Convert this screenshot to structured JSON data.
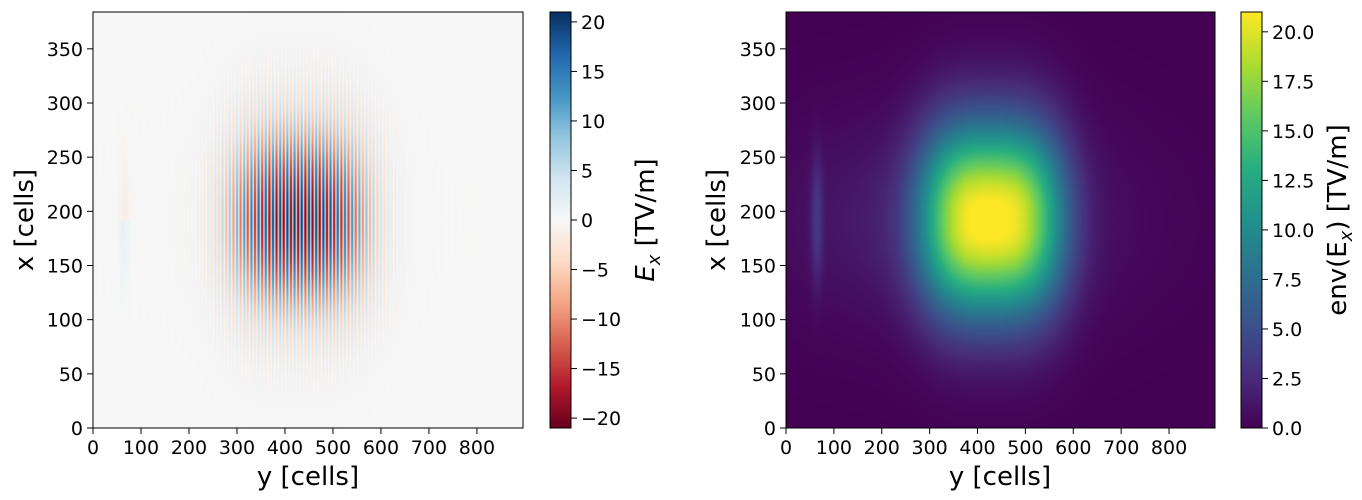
{
  "chart_data": [
    {
      "type": "heatmap",
      "title": "",
      "xlabel": "y [cells]",
      "ylabel": "x [cells]",
      "xlim": [
        0,
        896
      ],
      "ylim": [
        0,
        384
      ],
      "xticks": [
        "0",
        "100",
        "200",
        "300",
        "400",
        "500",
        "600",
        "700",
        "800"
      ],
      "yticks": [
        "0",
        "50",
        "100",
        "150",
        "200",
        "250",
        "300",
        "350"
      ],
      "colormap": "RdBu",
      "colorbar": {
        "label": "E_x [TV/m]",
        "label_base": "E",
        "label_sub": "x",
        "label_unit": " [TV/m]",
        "range": [
          -21,
          21
        ],
        "ticks": [
          "−20",
          "−15",
          "−10",
          "−5",
          "0",
          "5",
          "10",
          "15",
          "20"
        ]
      },
      "field": {
        "kind": "oscillating laser pulse",
        "center_y": 430,
        "center_x": 192,
        "sigma_y": 110,
        "sigma_x": 60,
        "peak": 21,
        "wavelength_cells": 15
      }
    },
    {
      "type": "heatmap",
      "title": "",
      "xlabel": "y [cells]",
      "ylabel": "x [cells]",
      "xlim": [
        0,
        896
      ],
      "ylim": [
        0,
        384
      ],
      "xticks": [
        "0",
        "100",
        "200",
        "300",
        "400",
        "500",
        "600",
        "700",
        "800"
      ],
      "yticks": [
        "0",
        "50",
        "100",
        "150",
        "200",
        "250",
        "300",
        "350"
      ],
      "colormap": "viridis",
      "colorbar": {
        "label": "env(E_x) [TV/m]",
        "label_base": "env(E",
        "label_sub": "x",
        "label_unit": ") [TV/m]",
        "range": [
          0,
          21
        ],
        "ticks": [
          "0.0",
          "2.5",
          "5.0",
          "7.5",
          "10.0",
          "12.5",
          "15.0",
          "17.5",
          "20.0"
        ]
      },
      "field": {
        "kind": "envelope",
        "center_y": 430,
        "center_x": 192,
        "sigma_y": 110,
        "sigma_x": 60,
        "peak": 21
      }
    }
  ]
}
